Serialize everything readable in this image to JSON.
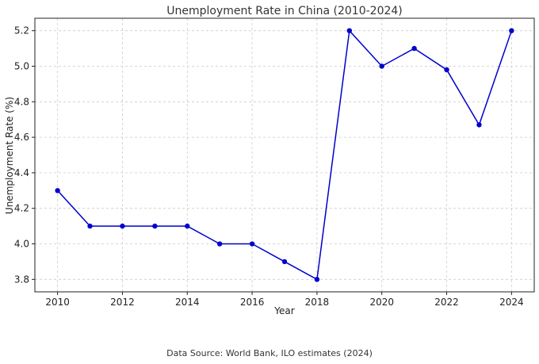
{
  "chart_data": {
    "type": "line",
    "title": "Unemployment Rate in China (2010-2024)",
    "xlabel": "Year",
    "ylabel": "Unemployment Rate (%)",
    "x": [
      2010,
      2011,
      2012,
      2013,
      2014,
      2015,
      2016,
      2017,
      2018,
      2019,
      2020,
      2021,
      2022,
      2023,
      2024
    ],
    "series": [
      {
        "values": [
          4.3,
          4.1,
          4.1,
          4.1,
          4.1,
          4.0,
          4.0,
          3.9,
          3.8,
          5.2,
          5.0,
          5.1,
          4.98,
          4.67,
          5.2
        ],
        "color": "#0000cc",
        "marker": "circle"
      }
    ],
    "xticks": [
      "2010",
      "2012",
      "2014",
      "2016",
      "2018",
      "2020",
      "2022",
      "2024"
    ],
    "yticks": [
      "3.8",
      "4.0",
      "4.2",
      "4.4",
      "4.6",
      "4.8",
      "5.0",
      "5.2"
    ],
    "xlim": [
      2009.3,
      2024.7
    ],
    "ylim": [
      3.73,
      5.27
    ],
    "grid": true,
    "legend": "none"
  },
  "footer": {
    "source": "Data Source: World Bank, ILO estimates (2024)"
  }
}
